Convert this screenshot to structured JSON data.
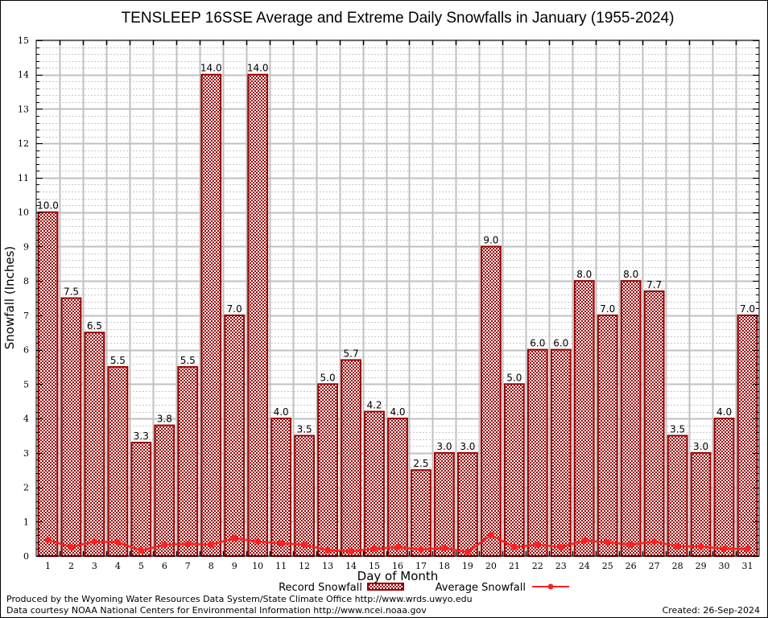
{
  "chart_data": {
    "type": "bar",
    "title": "TENSLEEP 16SSE Average and Extreme Daily Snowfalls in January (1955-2024)",
    "xlabel": "Day of Month",
    "ylabel": "Snowfall (Inches)",
    "ylim": [
      0,
      15
    ],
    "yticks": [
      0,
      1,
      2,
      3,
      4,
      5,
      6,
      7,
      8,
      9,
      10,
      11,
      12,
      13,
      14,
      15
    ],
    "grid": true,
    "categories": [
      "1",
      "2",
      "3",
      "4",
      "5",
      "6",
      "7",
      "8",
      "9",
      "10",
      "11",
      "12",
      "13",
      "14",
      "15",
      "16",
      "17",
      "18",
      "19",
      "20",
      "21",
      "22",
      "23",
      "24",
      "25",
      "26",
      "27",
      "28",
      "29",
      "30",
      "31"
    ],
    "series": [
      {
        "name": "Record Snowfall",
        "type": "bar",
        "color": "#990000",
        "values": [
          10.0,
          7.5,
          6.5,
          5.5,
          3.3,
          3.8,
          5.5,
          14.0,
          7.0,
          14.0,
          4.0,
          3.5,
          5.0,
          5.7,
          4.2,
          4.0,
          2.5,
          3.0,
          3.0,
          9.0,
          5.0,
          6.0,
          6.0,
          8.0,
          7.0,
          8.0,
          7.7,
          3.5,
          3.0,
          4.0,
          7.0
        ],
        "labels": [
          "10.0",
          "7.5",
          "6.5",
          "5.5",
          "3.3",
          "3.8",
          "5.5",
          "14.0",
          "7.0",
          "14.0",
          "4.0",
          "3.5",
          "5.0",
          "5.7",
          "4.2",
          "4.0",
          "2.5",
          "3.0",
          "3.0",
          "9.0",
          "5.0",
          "6.0",
          "6.0",
          "8.0",
          "7.0",
          "8.0",
          "7.7",
          "3.5",
          "3.0",
          "4.0",
          "7.0"
        ]
      },
      {
        "name": "Average Snowfall",
        "type": "line",
        "color": "#ff2020",
        "values": [
          0.47,
          0.26,
          0.42,
          0.4,
          0.16,
          0.33,
          0.35,
          0.33,
          0.52,
          0.42,
          0.37,
          0.33,
          0.17,
          0.14,
          0.21,
          0.26,
          0.19,
          0.23,
          0.12,
          0.61,
          0.26,
          0.33,
          0.26,
          0.45,
          0.4,
          0.33,
          0.42,
          0.28,
          0.28,
          0.21,
          0.21
        ]
      }
    ],
    "legend": {
      "placement": "bottom-center",
      "entries": [
        "Record Snowfall",
        "Average Snowfall"
      ]
    }
  },
  "footer": {
    "produced_by": "Produced by the Wyoming Water Resources Data System/State Climate Office http://www.wrds.uwyo.edu",
    "data_courtesy": "Data courtesy NOAA National Centers for Environmental Information http://www.ncei.noaa.gov",
    "created": "Created: 26-Sep-2024"
  }
}
